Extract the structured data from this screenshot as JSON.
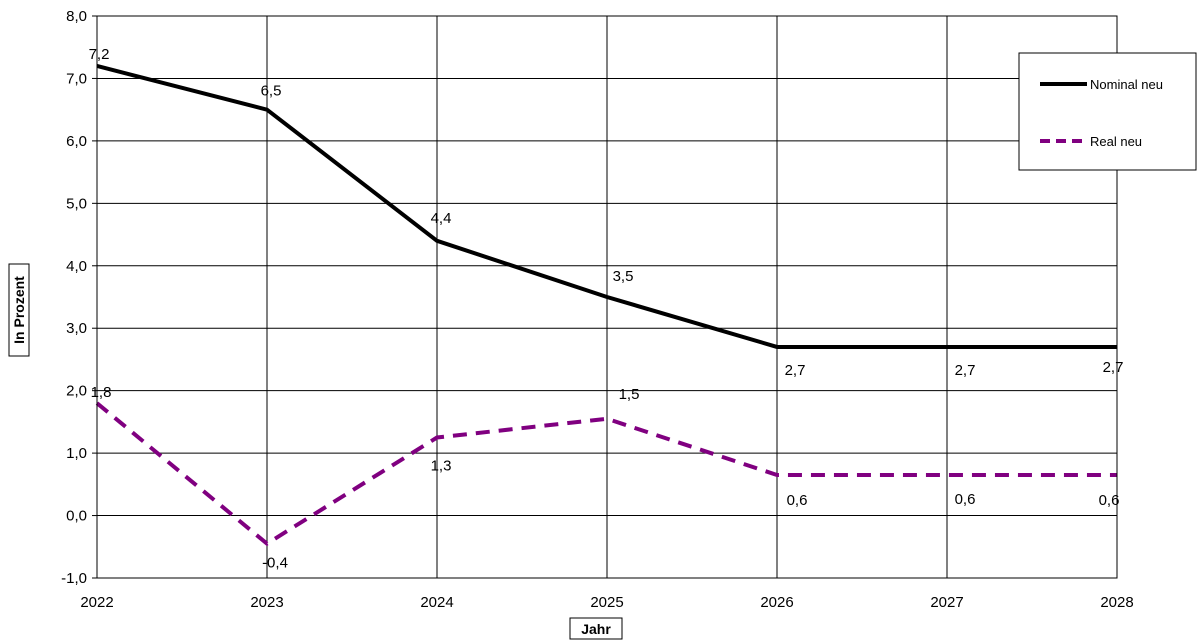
{
  "chart_data": {
    "type": "line",
    "categories": [
      "2022",
      "2023",
      "2024",
      "2025",
      "2026",
      "2027",
      "2028"
    ],
    "series": [
      {
        "name": "Nominal neu",
        "values": [
          7.2,
          6.5,
          4.4,
          3.5,
          2.7,
          2.7,
          2.7
        ],
        "labels": [
          "7,2",
          "6,5",
          "4,4",
          "3,5",
          "2,7",
          "2,7",
          "2,7"
        ],
        "color": "#000000",
        "style": "solid"
      },
      {
        "name": "Real neu",
        "values": [
          1.8,
          -0.45,
          1.25,
          1.55,
          0.65,
          0.65,
          0.65
        ],
        "labels": [
          "1,8",
          "-0,4",
          "1,3",
          "1,5",
          "0,6",
          "0,6",
          "0,6"
        ],
        "color": "#800080",
        "style": "dashed"
      }
    ],
    "xlabel": "Jahr",
    "ylabel": "In Prozent",
    "ylim": [
      -1,
      8
    ],
    "yticks": [
      "-1,0",
      "0,0",
      "1,0",
      "2,0",
      "3,0",
      "4,0",
      "5,0",
      "6,0",
      "7,0",
      "8,0"
    ],
    "grid": true,
    "legend": "top-right"
  }
}
